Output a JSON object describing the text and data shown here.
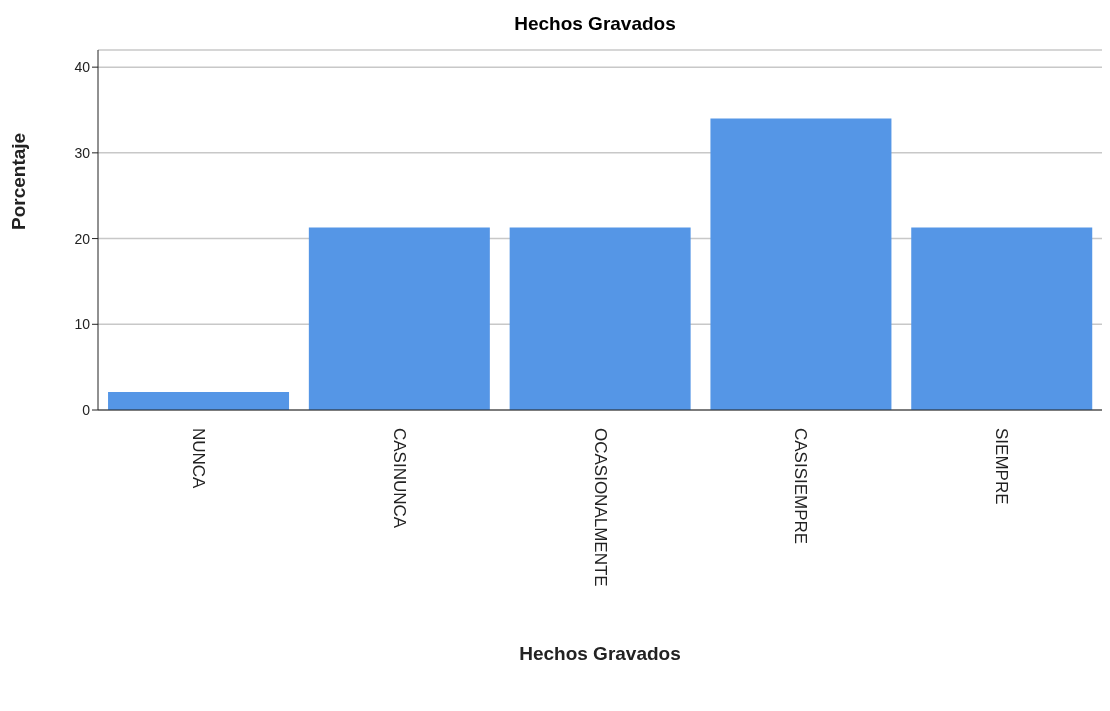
{
  "chart_data": {
    "type": "bar",
    "title": "Hechos Gravados",
    "xlabel": "Hechos Gravados",
    "ylabel": "Porcentaje",
    "categories": [
      "NUNCA",
      "CASINUNCA",
      "OCASIONALMENTE",
      "CASISIEMPRE",
      "SIEMPRE"
    ],
    "values": [
      2.1,
      21.3,
      21.3,
      34.0,
      21.3
    ],
    "color": "#5596e6",
    "ylim": [
      0,
      42
    ],
    "yticks": [
      0,
      10,
      20,
      30,
      40
    ],
    "grid": "y",
    "legend": false
  }
}
